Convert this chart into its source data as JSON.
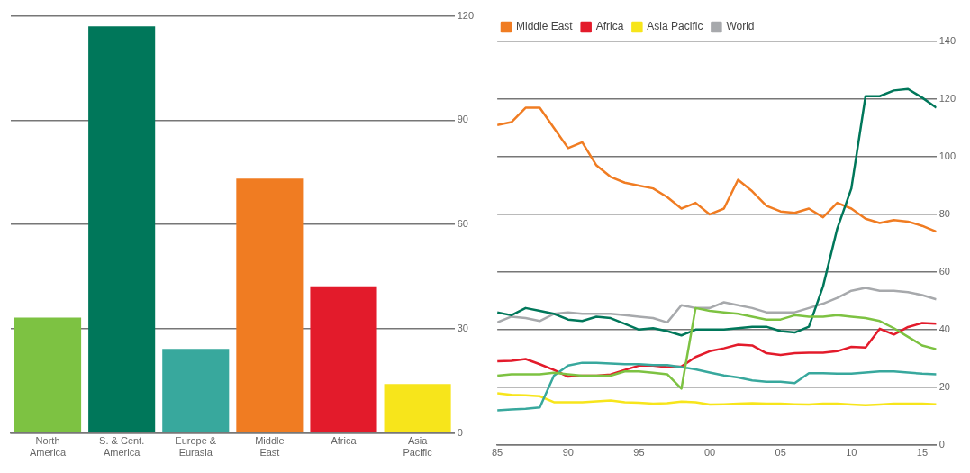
{
  "chart_data": [
    {
      "type": "bar",
      "categories": [
        "North America",
        "S. & Cent. America",
        "Europe & Eurasia",
        "Middle East",
        "Africa",
        "Asia Pacific"
      ],
      "values": [
        33.2,
        117,
        24.2,
        73.2,
        42.2,
        14.1
      ],
      "colors": [
        "#7dc242",
        "#00775a",
        "#38a89d",
        "#f07c22",
        "#e31b2b",
        "#f7e51b"
      ],
      "ylim": [
        0,
        120
      ],
      "yticks": [
        0,
        30,
        60,
        90,
        120
      ],
      "grid": "y",
      "legend": false
    },
    {
      "type": "line",
      "x": [
        1985,
        1986,
        1987,
        1988,
        1989,
        1990,
        1991,
        1992,
        1993,
        1994,
        1995,
        1996,
        1997,
        1998,
        1999,
        2000,
        2001,
        2002,
        2003,
        2004,
        2005,
        2006,
        2007,
        2008,
        2009,
        2010,
        2011,
        2012,
        2013,
        2014,
        2015,
        2016
      ],
      "series": [
        {
          "color": "#7dc242",
          "values": [
            24,
            24.5,
            24.5,
            24.5,
            25,
            24.5,
            24,
            24,
            24,
            25.5,
            25.5,
            25,
            24.5,
            19.5,
            47.5,
            46.5,
            46,
            45.5,
            44.5,
            43.5,
            43.5,
            45,
            44.5,
            44.5,
            45,
            44.5,
            44,
            43,
            40.5,
            37.5,
            34.5,
            33.2
          ]
        },
        {
          "color": "#00775a",
          "values": [
            46,
            45,
            47.5,
            46.5,
            45.5,
            43.5,
            43,
            44.5,
            44,
            42,
            40,
            40.5,
            39.5,
            38,
            40,
            40,
            40,
            40.5,
            41,
            41,
            39.5,
            39,
            41,
            55,
            75,
            89,
            121,
            121,
            123,
            123.5,
            120.5,
            117
          ]
        },
        {
          "color": "#38a89d",
          "values": [
            12,
            12.3,
            12.5,
            13,
            24,
            27.5,
            28.5,
            28.5,
            28.2,
            28,
            28,
            27.7,
            27.7,
            27,
            26.2,
            25.1,
            24.1,
            23.4,
            22.4,
            21.9,
            21.9,
            21.4,
            24.9,
            24.9,
            24.7,
            24.7,
            25.1,
            25.5,
            25.5,
            25.1,
            24.7,
            24.5
          ]
        },
        {
          "name": "Middle East",
          "color": "#f07c22",
          "values": [
            111,
            112,
            117,
            117,
            110,
            103,
            105,
            97,
            93,
            91,
            90,
            89,
            86,
            82,
            84,
            80,
            82,
            92,
            88,
            83,
            81,
            80.5,
            82,
            79,
            84,
            82,
            78.5,
            77,
            78,
            77.5,
            76,
            74
          ]
        },
        {
          "name": "Africa",
          "color": "#e31b2b",
          "values": [
            29,
            29.2,
            29.8,
            28,
            26,
            23.7,
            24,
            24,
            24.4,
            26,
            27.5,
            27.5,
            27,
            27.2,
            30.5,
            32.5,
            33.5,
            34.8,
            34.5,
            31.8,
            31.2,
            31.8,
            32,
            32,
            32.5,
            34,
            33.8,
            40.3,
            38.3,
            40.9,
            42.3,
            42.1
          ]
        },
        {
          "name": "Asia Pacific",
          "color": "#f7e51b",
          "values": [
            17.9,
            17.4,
            17.2,
            16.9,
            14.8,
            14.8,
            14.8,
            15.1,
            15.4,
            14.8,
            14.6,
            14.3,
            14.5,
            15,
            14.8,
            14,
            14.1,
            14.3,
            14.5,
            14.3,
            14.3,
            14.1,
            14,
            14.3,
            14.3,
            14,
            13.8,
            14,
            14.3,
            14.3,
            14.3,
            14.1
          ]
        },
        {
          "name": "World",
          "color": "#a7a9ac",
          "values": [
            42.5,
            44.5,
            44,
            43,
            45.5,
            46,
            45.5,
            45.5,
            45.5,
            45,
            44.5,
            44,
            42.5,
            48.5,
            47.5,
            47.5,
            49.5,
            48.5,
            47.5,
            46,
            46,
            46,
            47.5,
            49,
            51,
            53.5,
            54.5,
            53.5,
            53.5,
            53,
            52,
            50.5
          ]
        }
      ],
      "xlim": [
        1985,
        2016
      ],
      "xticks": [
        {
          "value": 1985,
          "label": "85"
        },
        {
          "value": 1990,
          "label": "90"
        },
        {
          "value": 1995,
          "label": "95"
        },
        {
          "value": 2000,
          "label": "00"
        },
        {
          "value": 2005,
          "label": "05"
        },
        {
          "value": 2010,
          "label": "10"
        },
        {
          "value": 2015,
          "label": "15"
        }
      ],
      "ylim": [
        0,
        140
      ],
      "yticks": [
        0,
        20,
        40,
        60,
        80,
        100,
        120,
        140
      ],
      "grid": "y",
      "legend": "top left",
      "marker": "none",
      "line_style": "solid"
    }
  ]
}
